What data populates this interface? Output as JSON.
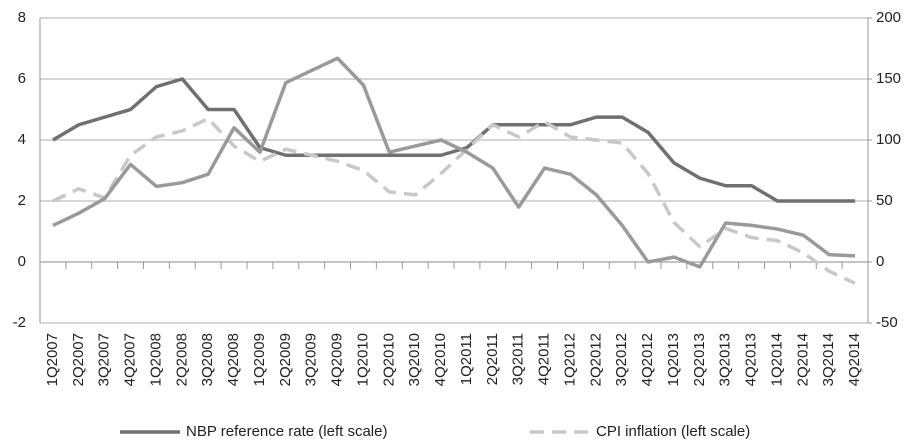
{
  "chart_data": {
    "type": "line",
    "categories": [
      "1Q2007",
      "2Q2007",
      "3Q2007",
      "4Q2007",
      "1Q2008",
      "2Q2008",
      "3Q2008",
      "4Q2008",
      "1Q2009",
      "2Q2009",
      "3Q2009",
      "4Q2009",
      "1Q2010",
      "2Q2010",
      "3Q2010",
      "4Q2010",
      "1Q2011",
      "2Q2011",
      "3Q2011",
      "4Q2011",
      "1Q2012",
      "2Q2012",
      "3Q2012",
      "4Q2012",
      "1Q2013",
      "2Q2013",
      "3Q2013",
      "4Q2013",
      "1Q2014",
      "2Q2014",
      "3Q2014",
      "4Q2014"
    ],
    "series": [
      {
        "name": "NBP reference rate (left scale)",
        "color": "#707070",
        "dash": false,
        "values": [
          4.0,
          4.5,
          4.75,
          5.0,
          5.75,
          6.0,
          5.0,
          5.0,
          3.75,
          3.5,
          3.5,
          3.5,
          3.5,
          3.5,
          3.5,
          3.5,
          3.75,
          4.5,
          4.5,
          4.5,
          4.5,
          4.75,
          4.75,
          4.25,
          3.25,
          2.75,
          2.5,
          2.5,
          2.0,
          2.0,
          2.0,
          2.0
        ]
      },
      {
        "name": "CPI inflation (left scale)",
        "color": "#c8c8c8",
        "dash": true,
        "values": [
          2.0,
          2.4,
          2.1,
          3.5,
          4.1,
          4.3,
          4.7,
          3.8,
          3.3,
          3.7,
          3.5,
          3.3,
          3.0,
          2.3,
          2.2,
          2.9,
          3.7,
          4.5,
          4.1,
          4.6,
          4.1,
          4.0,
          3.9,
          2.9,
          1.3,
          0.5,
          1.1,
          0.8,
          0.7,
          0.3,
          -0.3,
          -0.7
        ]
      },
      {
        "color": "#9a9a9a",
        "dash": false,
        "axis": "y2",
        "values": [
          30,
          40,
          52,
          80,
          62,
          65,
          72,
          110,
          90,
          147,
          157,
          167,
          145,
          90,
          95,
          100,
          90,
          77,
          45,
          77,
          72,
          55,
          30,
          0,
          4,
          -4,
          32,
          30,
          27,
          22,
          6,
          5
        ]
      }
    ],
    "ylim": [
      -2,
      8
    ],
    "yticks": [
      -2,
      0,
      2,
      4,
      6,
      8
    ],
    "y2lim": [
      -50,
      200
    ],
    "y2ticks": [
      -50,
      0,
      50,
      100,
      150,
      200
    ],
    "grid": true
  }
}
